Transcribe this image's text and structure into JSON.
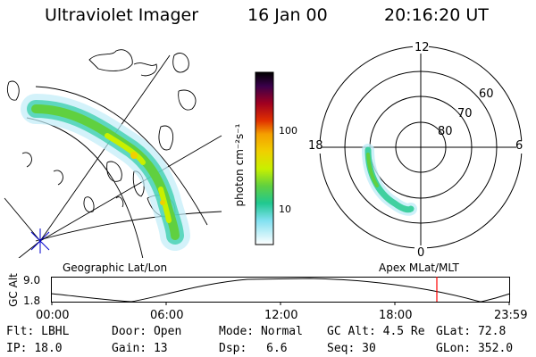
{
  "header": {
    "title": "Ultraviolet Imager",
    "date": "16 Jan 00",
    "time": "20:16:20 UT"
  },
  "geo_panel": {
    "caption": "Geographic Lat/Lon"
  },
  "colorbar": {
    "unit_label": "photon cm⁻²s⁻¹",
    "ticks": [
      "100",
      "10"
    ],
    "colors": [
      "#000000",
      "#1a0033",
      "#3a004a",
      "#5a0055",
      "#7a0040",
      "#a00020",
      "#c80000",
      "#e03000",
      "#f07000",
      "#f5a000",
      "#f0d000",
      "#c8f000",
      "#80e000",
      "#40d040",
      "#20c890",
      "#30d0d0",
      "#80e0f0",
      "#c0ecf8",
      "#ffffff"
    ]
  },
  "polar_panel": {
    "caption": "Apex MLat/MLT",
    "lat_labels": [
      "60",
      "70",
      "80"
    ],
    "mlt_labels": [
      "12",
      "18",
      "6",
      "0"
    ]
  },
  "altitude_strip": {
    "axis_label": "GC Alt",
    "y_ticks": [
      "9.0",
      "1.8"
    ],
    "time_ticks": [
      "00:00",
      "06:00",
      "12:00",
      "18:00",
      "23:59"
    ],
    "current_time_marker": "20:16:20",
    "marker_color": "#ff0000"
  },
  "info": {
    "row1": [
      {
        "label": "Flt:",
        "value": "LBHL"
      },
      {
        "label": "Door:",
        "value": "Open"
      },
      {
        "label": "Mode:",
        "value": "Normal"
      },
      {
        "label": "GC Alt:",
        "value": "4.5 Re"
      },
      {
        "label": "GLat:",
        "value": "72.8"
      }
    ],
    "row2": [
      {
        "label": "IP:",
        "value": "18.0"
      },
      {
        "label": "Gain:",
        "value": "13"
      },
      {
        "label": "Dsp:",
        "value": "6.6"
      },
      {
        "label": "Seq:",
        "value": "30"
      },
      {
        "label": "GLon:",
        "value": "352.0"
      }
    ]
  }
}
